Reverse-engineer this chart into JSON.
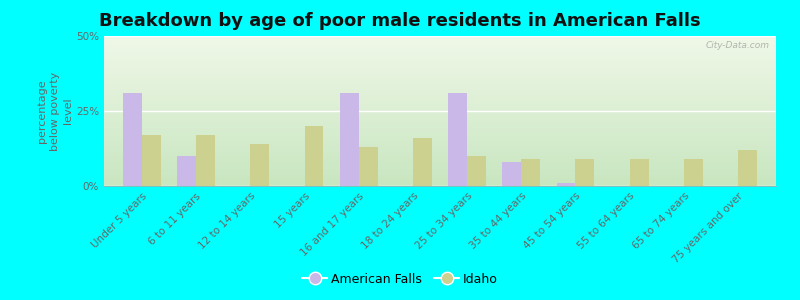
{
  "title": "Breakdown by age of poor male residents in American Falls",
  "ylabel": "percentage\nbelow poverty\nlevel",
  "categories": [
    "Under 5 years",
    "6 to 11 years",
    "12 to 14 years",
    "15 years",
    "16 and 17 years",
    "18 to 24 years",
    "25 to 34 years",
    "35 to 44 years",
    "45 to 54 years",
    "55 to 64 years",
    "65 to 74 years",
    "75 years and over"
  ],
  "american_falls": [
    31.0,
    10.0,
    0.0,
    0.0,
    31.0,
    0.0,
    31.0,
    8.0,
    1.0,
    0.0,
    0.0,
    0.0
  ],
  "idaho": [
    17.0,
    17.0,
    14.0,
    20.0,
    13.0,
    16.0,
    10.0,
    9.0,
    9.0,
    9.0,
    9.0,
    12.0
  ],
  "american_falls_color": "#c9b8e8",
  "idaho_color": "#cdd190",
  "bg_bottom_color": "#c8e6c0",
  "bg_top_color": "#f0f8e8",
  "outer_background": "#00ffff",
  "ylim": [
    0,
    50
  ],
  "yticks": [
    0,
    25,
    50
  ],
  "ytick_labels": [
    "0%",
    "25%",
    "50%"
  ],
  "bar_width": 0.35,
  "title_fontsize": 13,
  "axis_label_fontsize": 8,
  "tick_fontsize": 7.5,
  "legend_fontsize": 9,
  "watermark": "City-Data.com"
}
